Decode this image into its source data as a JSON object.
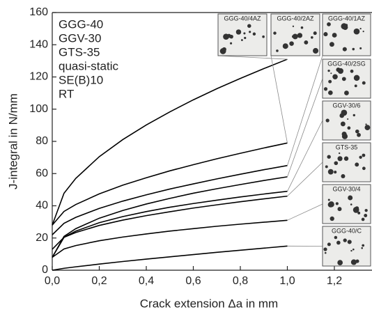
{
  "chart_data": {
    "type": "line",
    "xlabel": "Crack extension Δa in mm",
    "ylabel": "J-integral in N/mm",
    "annotations": [
      "GGG-40",
      "GGV-30",
      "GTS-35",
      "quasi-static",
      "SE(B)10",
      "RT"
    ],
    "micrographs": [
      "GGG-40/4AZ",
      "GGG-40/2AZ",
      "GGG-40/1AZ",
      "GGG-40/2SG",
      "GGV-30/6",
      "GTS-35",
      "GGV-30/4",
      "GGG-40/C"
    ],
    "x": [
      0,
      0.05,
      0.1,
      0.2,
      0.3,
      0.4,
      0.5,
      0.6,
      0.7,
      0.8,
      0.9,
      1.0
    ],
    "series": [
      {
        "color": "#000000",
        "values": [
          28,
          47.8,
          57.0,
          70.5,
          81.1,
          90.2,
          98.3,
          105.8,
          112.7,
          119.1,
          125.2,
          131
        ]
      },
      {
        "color": "#000000",
        "values": [
          28,
          36.5,
          40.8,
          47.4,
          52.8,
          57.4,
          61.7,
          65.5,
          69.2,
          72.6,
          75.9,
          79
        ]
      },
      {
        "color": "#000000",
        "values": [
          22,
          29.1,
          32.8,
          38.4,
          42.9,
          46.8,
          50.4,
          53.6,
          56.7,
          59.6,
          62.4,
          65
        ]
      },
      {
        "color": "#000000",
        "values": [
          8,
          21.0,
          25.8,
          32.3,
          37.1,
          41.1,
          44.6,
          47.8,
          50.6,
          53.2,
          55.7,
          58
        ]
      },
      {
        "color": "#000000",
        "values": [
          8,
          20.4,
          24.3,
          29.5,
          33.3,
          36.4,
          39.1,
          41.4,
          43.5,
          45.5,
          47.3,
          49
        ]
      },
      {
        "color": "#000000",
        "values": [
          13,
          20.4,
          23.4,
          27.8,
          31.1,
          33.9,
          36.3,
          38.6,
          40.6,
          42.5,
          44.3,
          46
        ]
      },
      {
        "color": "#000000",
        "values": [
          8,
          13.2,
          15.3,
          18.3,
          20.6,
          22.5,
          24.3,
          25.8,
          27.3,
          28.6,
          29.8,
          31
        ]
      },
      {
        "color": "#000000",
        "values": [
          0,
          1.2,
          2.1,
          3.8,
          5.4,
          6.9,
          8.3,
          9.7,
          11.1,
          12.4,
          13.7,
          15
        ]
      }
    ],
    "xlim": [
      0,
      1.35
    ],
    "ylim": [
      0,
      160
    ],
    "xticks": [
      {
        "value": 0,
        "label": "0,0"
      },
      {
        "value": 0.2,
        "label": "0,2"
      },
      {
        "value": 0.4,
        "label": "0,4"
      },
      {
        "value": 0.6,
        "label": "0,6"
      },
      {
        "value": 0.8,
        "label": "0,8"
      },
      {
        "value": 1.0,
        "label": "1,0"
      },
      {
        "value": 1.2,
        "label": "1,2"
      }
    ],
    "yticks": [
      0,
      20,
      40,
      60,
      80,
      100,
      120,
      140,
      160
    ]
  }
}
